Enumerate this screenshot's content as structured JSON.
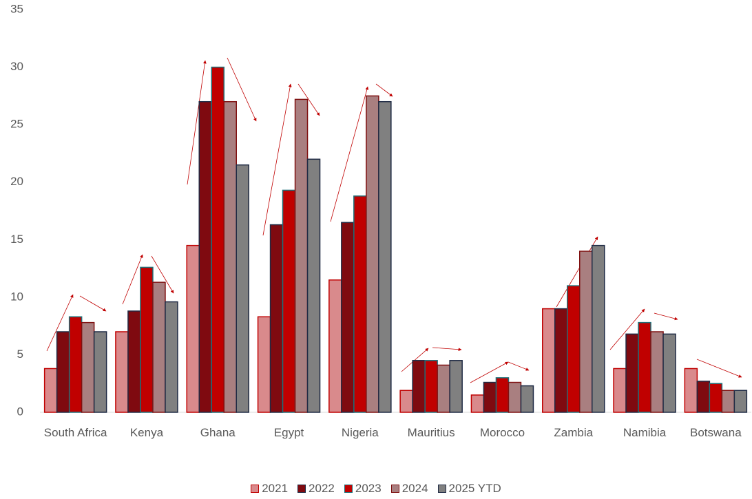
{
  "chart_data": {
    "type": "bar",
    "categories": [
      "South Africa",
      "Kenya",
      "Ghana",
      "Egypt",
      "Nigeria",
      "Mauritius",
      "Morocco",
      "Zambia",
      "Namibia",
      "Botswana"
    ],
    "series": [
      {
        "name": "2021",
        "color": "#d98a8c",
        "values": [
          3.8,
          7,
          14.5,
          8.3,
          11.5,
          1.9,
          1.5,
          9,
          3.8,
          3.8
        ]
      },
      {
        "name": "2022",
        "color": "#7f0a10",
        "values": [
          7,
          8.8,
          27,
          16.3,
          16.5,
          4.5,
          2.6,
          9,
          6.8,
          2.7
        ]
      },
      {
        "name": "2023",
        "color": "#c00000",
        "values": [
          8.3,
          12.6,
          30,
          19.3,
          18.8,
          4.5,
          3,
          11,
          7.8,
          2.5
        ]
      },
      {
        "name": "2024",
        "color": "#a97f80",
        "values": [
          7.8,
          11.3,
          27,
          27.2,
          27.5,
          4.1,
          2.6,
          14,
          7,
          1.9
        ]
      },
      {
        "name": "2025 YTD",
        "color": "#808080",
        "values": [
          7,
          9.6,
          21.5,
          22,
          27,
          4.5,
          2.3,
          14.5,
          6.8,
          1.9
        ]
      }
    ],
    "ylim": [
      0,
      35
    ],
    "yticks": [
      0,
      5,
      10,
      15,
      20,
      25,
      30,
      35
    ],
    "grid": false,
    "legend": "bottom"
  }
}
